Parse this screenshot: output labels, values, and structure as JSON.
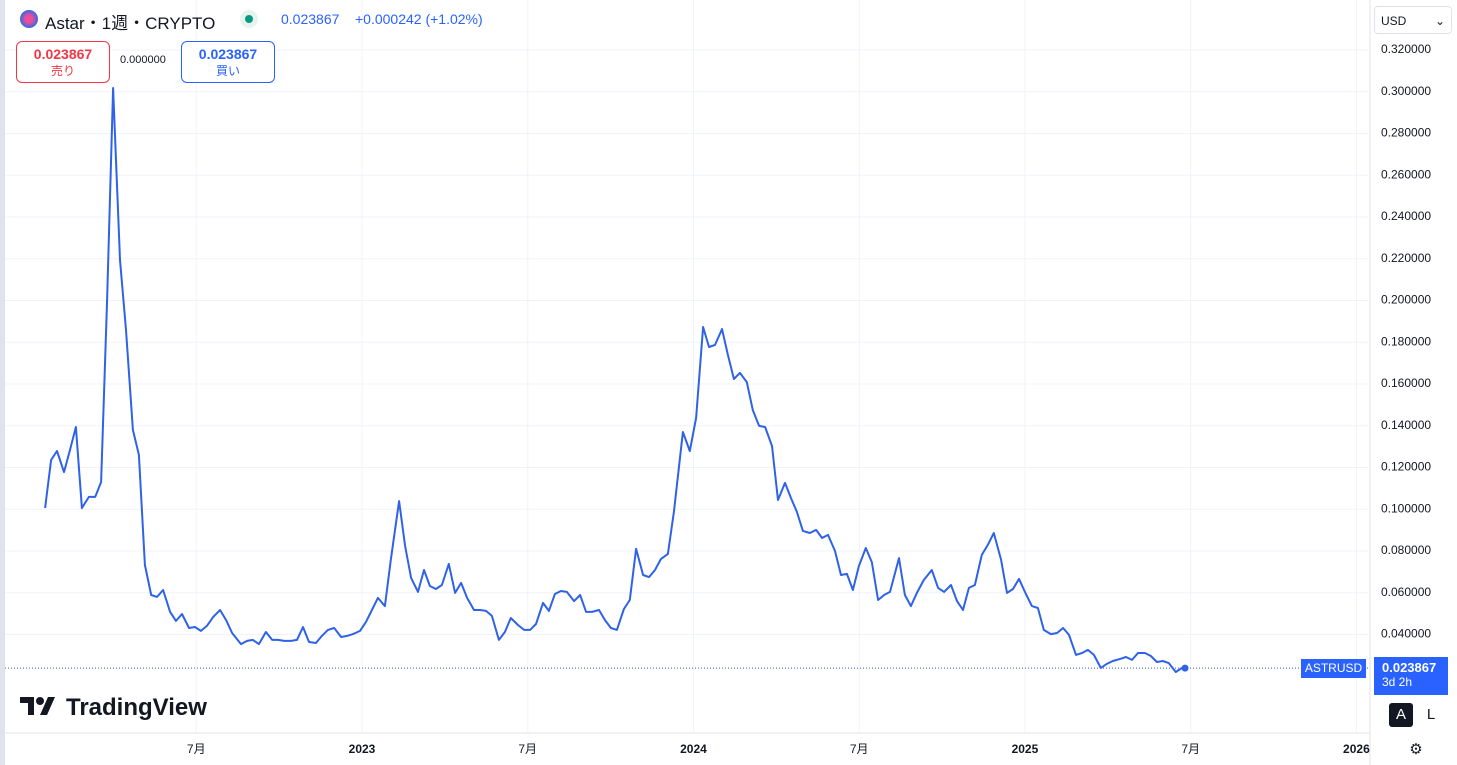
{
  "header": {
    "title": "Astar・1週・CRYPTO",
    "price": "0.023867",
    "change": "+0.000242 (+1.02%)",
    "sell_price": "0.023867",
    "sell_label": "売り",
    "spread": "0.000000",
    "buy_price": "0.023867",
    "buy_label": "買い",
    "currency": "USD",
    "last_price": "0.023867",
    "countdown": "3d 2h",
    "logo": "TradingView",
    "buttons": [
      "A",
      "L"
    ]
  },
  "chart_data": {
    "type": "line",
    "grid": true,
    "x": [
      2022.044,
      2022.062,
      2022.08,
      2022.101,
      2022.119,
      2022.137,
      2022.155,
      2022.176,
      2022.195,
      2022.213,
      2022.231,
      2022.249,
      2022.27,
      2022.288,
      2022.309,
      2022.327,
      2022.345,
      2022.364,
      2022.382,
      2022.4,
      2022.421,
      2022.439,
      2022.457,
      2022.478,
      2022.496,
      2022.514,
      2022.532,
      2022.551,
      2022.572,
      2022.59,
      2022.608,
      2022.635,
      2022.653,
      2022.671,
      2022.689,
      2022.71,
      2022.729,
      2022.747,
      2022.765,
      2022.786,
      2022.804,
      2022.822,
      2022.84,
      2022.861,
      2022.879,
      2022.897,
      2022.916,
      2022.937,
      2022.955,
      2022.973,
      2022.994,
      2023.012,
      2023.03,
      2023.048,
      2023.069,
      2023.087,
      2023.112,
      2023.13,
      2023.148,
      2023.169,
      2023.187,
      2023.205,
      2023.223,
      2023.241,
      2023.262,
      2023.281,
      2023.299,
      2023.317,
      2023.338,
      2023.356,
      2023.374,
      2023.392,
      2023.413,
      2023.431,
      2023.449,
      2023.471,
      2023.489,
      2023.507,
      2023.525,
      2023.546,
      2023.564,
      2023.582,
      2023.6,
      2023.618,
      2023.64,
      2023.658,
      2023.676,
      2023.694,
      2023.715,
      2023.733,
      2023.751,
      2023.769,
      2023.79,
      2023.808,
      2023.827,
      2023.848,
      2023.866,
      2023.884,
      2023.902,
      2023.923,
      2023.941,
      2023.968,
      2023.989,
      2024.008,
      2024.029,
      2024.047,
      2024.065,
      2024.086,
      2024.104,
      2024.122,
      2024.14,
      2024.161,
      2024.179,
      2024.198,
      2024.216,
      2024.237,
      2024.255,
      2024.276,
      2024.294,
      2024.312,
      2024.33,
      2024.351,
      2024.37,
      2024.388,
      2024.406,
      2024.427,
      2024.445,
      2024.463,
      2024.481,
      2024.499,
      2024.52,
      2024.538,
      2024.557,
      2024.575,
      2024.593,
      2024.62,
      2024.638,
      2024.656,
      2024.674,
      2024.695,
      2024.719,
      2024.738,
      2024.756,
      2024.777,
      2024.795,
      2024.813,
      2024.831,
      2024.849,
      2024.87,
      2024.888,
      2024.906,
      2024.928,
      2024.946,
      2024.964,
      2024.982,
      2025.003,
      2025.021,
      2025.039,
      2025.057,
      2025.078,
      2025.097,
      2025.115,
      2025.133,
      2025.154,
      2025.172,
      2025.19,
      2025.208,
      2025.229,
      2025.247,
      2025.265,
      2025.287,
      2025.305,
      2025.323,
      2025.341,
      2025.362,
      2025.38,
      2025.398,
      2025.416,
      2025.434,
      2025.455,
      2025.474,
      2025.483
    ],
    "series": [
      {
        "name": "ASTRUSD",
        "color": "#2f62e8",
        "values": [
          0.1006,
          0.1236,
          0.1279,
          0.1178,
          0.1284,
          0.1394,
          0.1006,
          0.1059,
          0.1059,
          0.113,
          0.2002,
          0.3018,
          0.2194,
          0.1859,
          0.138,
          0.126,
          0.0733,
          0.0589,
          0.058,
          0.0613,
          0.0508,
          0.0465,
          0.0498,
          0.0431,
          0.0436,
          0.0417,
          0.0441,
          0.0484,
          0.0517,
          0.0469,
          0.0407,
          0.0354,
          0.0369,
          0.0374,
          0.0354,
          0.0412,
          0.0374,
          0.0374,
          0.0369,
          0.0369,
          0.0374,
          0.0436,
          0.0364,
          0.0359,
          0.0393,
          0.0422,
          0.0431,
          0.0388,
          0.0393,
          0.0402,
          0.0417,
          0.046,
          0.0517,
          0.0575,
          0.0536,
          0.0757,
          0.1039,
          0.0824,
          0.0671,
          0.0604,
          0.0709,
          0.0632,
          0.0618,
          0.0637,
          0.0738,
          0.0599,
          0.0647,
          0.0575,
          0.0517,
          0.0517,
          0.0513,
          0.0489,
          0.0374,
          0.0412,
          0.0479,
          0.0445,
          0.0422,
          0.0422,
          0.045,
          0.0551,
          0.0513,
          0.0594,
          0.0608,
          0.0604,
          0.056,
          0.0589,
          0.0508,
          0.0508,
          0.0517,
          0.0469,
          0.0431,
          0.0422,
          0.0522,
          0.0565,
          0.081,
          0.0685,
          0.0675,
          0.0709,
          0.0762,
          0.0786,
          0.0987,
          0.137,
          0.1279,
          0.1437,
          0.1873,
          0.1777,
          0.1787,
          0.1863,
          0.1739,
          0.1624,
          0.1653,
          0.1609,
          0.1475,
          0.1399,
          0.1394,
          0.1303,
          0.1044,
          0.1126,
          0.1054,
          0.0987,
          0.0896,
          0.0886,
          0.0901,
          0.0862,
          0.0877,
          0.08,
          0.0685,
          0.069,
          0.0613,
          0.0728,
          0.0814,
          0.0747,
          0.0565,
          0.0589,
          0.0604,
          0.0766,
          0.0589,
          0.0536,
          0.0599,
          0.0661,
          0.0709,
          0.0623,
          0.0604,
          0.0637,
          0.056,
          0.0517,
          0.0623,
          0.0637,
          0.0781,
          0.0829,
          0.0886,
          0.0757,
          0.0599,
          0.0618,
          0.0666,
          0.0594,
          0.0536,
          0.0527,
          0.0422,
          0.0402,
          0.0407,
          0.0431,
          0.0398,
          0.0302,
          0.0311,
          0.0326,
          0.0302,
          0.024,
          0.0259,
          0.0273,
          0.0283,
          0.0292,
          0.0278,
          0.0311,
          0.0311,
          0.0297,
          0.0268,
          0.0273,
          0.0263,
          0.022,
          0.024,
          0.023867
        ]
      }
    ],
    "xlim": [
      2021.923,
      2026.041
    ],
    "xticks": [
      {
        "value": 2022.5,
        "label": "7月"
      },
      2023,
      {
        "value": 2023.5,
        "label": "7月"
      },
      2024,
      {
        "value": 2024.5,
        "label": "7月"
      },
      2025,
      {
        "value": 2025.5,
        "label": "7月"
      },
      2026
    ],
    "ylim": [
      -0.0072,
      0.3401
    ],
    "yticks": [
      {
        "value": 0.04,
        "label": "0.040000"
      },
      {
        "value": 0.06,
        "label": "0.060000"
      },
      {
        "value": 0.08,
        "label": "0.080000"
      },
      {
        "value": 0.1,
        "label": "0.100000"
      },
      {
        "value": 0.12,
        "label": "0.120000"
      },
      {
        "value": 0.14,
        "label": "0.140000"
      },
      {
        "value": 0.16,
        "label": "0.160000"
      },
      {
        "value": 0.18,
        "label": "0.180000"
      },
      {
        "value": 0.2,
        "label": "0.200000"
      },
      {
        "value": 0.22,
        "label": "0.220000"
      },
      {
        "value": 0.24,
        "label": "0.240000"
      },
      {
        "value": 0.26,
        "label": "0.260000"
      },
      {
        "value": 0.28,
        "label": "0.280000"
      },
      {
        "value": 0.3,
        "label": "0.300000"
      },
      {
        "value": 0.32,
        "label": "0.320000"
      }
    ]
  }
}
